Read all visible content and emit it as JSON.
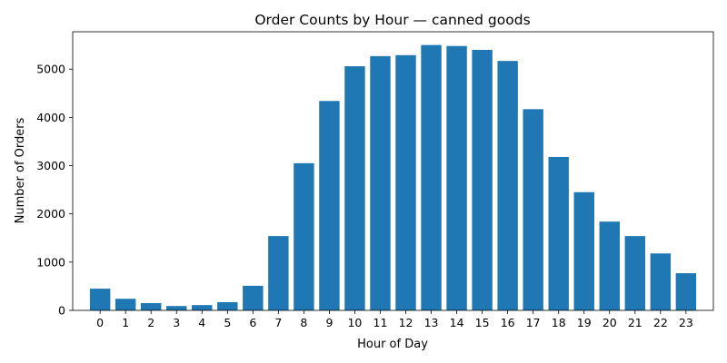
{
  "chart_data": {
    "type": "bar",
    "title": "Order Counts by Hour — canned goods",
    "xlabel": "Hour of Day",
    "ylabel": "Number of Orders",
    "categories": [
      "0",
      "1",
      "2",
      "3",
      "4",
      "5",
      "6",
      "7",
      "8",
      "9",
      "10",
      "11",
      "12",
      "13",
      "14",
      "15",
      "16",
      "17",
      "18",
      "19",
      "20",
      "21",
      "22",
      "23"
    ],
    "values": [
      450,
      240,
      150,
      90,
      110,
      170,
      510,
      1540,
      3050,
      4340,
      5060,
      5270,
      5290,
      5500,
      5480,
      5400,
      5170,
      4170,
      3180,
      2450,
      1840,
      1540,
      1180,
      770
    ],
    "yticks": [
      0,
      1000,
      2000,
      3000,
      4000,
      5000
    ],
    "ylim": [
      0,
      5775
    ],
    "grid": false,
    "bar_color": "#1f77b4"
  }
}
